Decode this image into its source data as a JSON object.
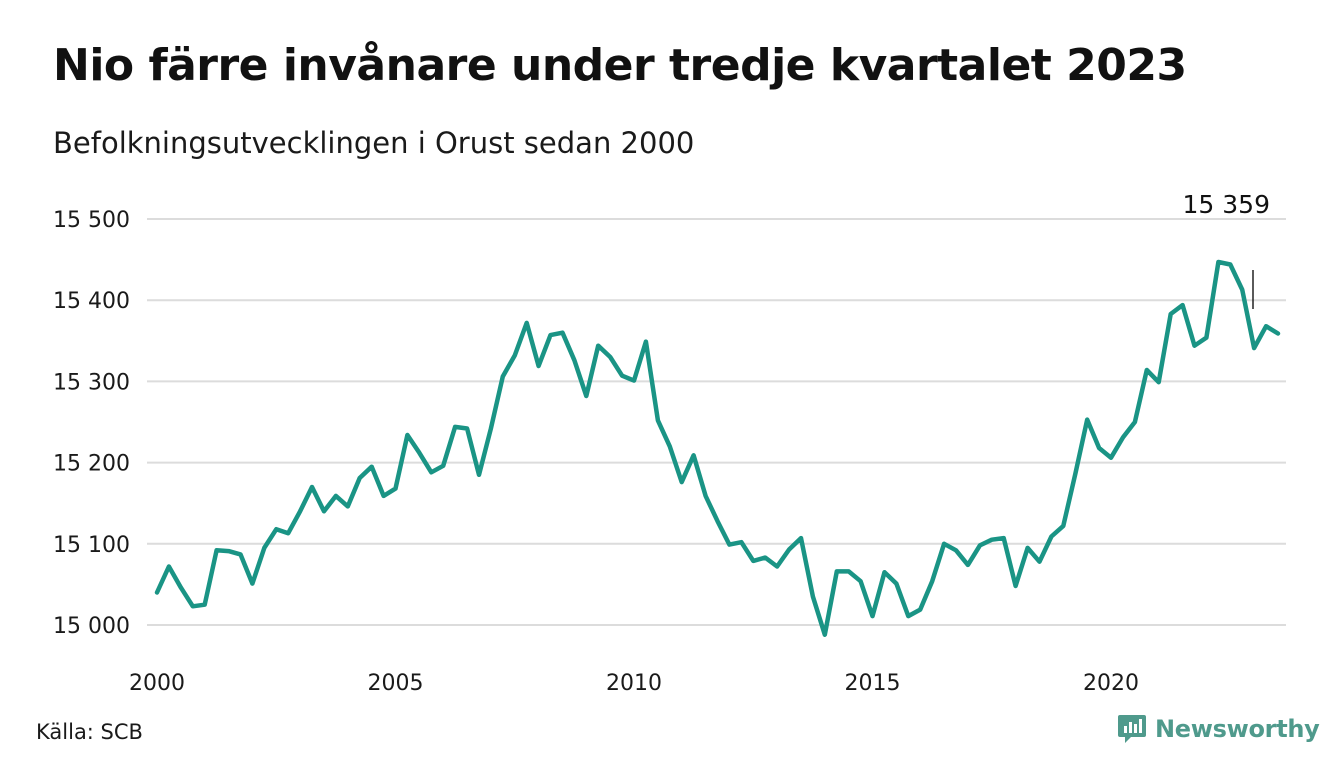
{
  "title": "Nio färre invånare under tredje kvartalet 2023",
  "subtitle": "Befolkningsutvecklingen i Orust sedan 2000",
  "source": "Källa: SCB",
  "brand": "Newsworthy",
  "colors": {
    "line": "#1a9485",
    "grid": "#dcdcdc",
    "brand": "#4f9a8c",
    "annotation": "#222222"
  },
  "chart_data": {
    "type": "line",
    "title": "Nio färre invånare under tredje kvartalet 2023",
    "subtitle": "Befolkningsutvecklingen i Orust sedan 2000",
    "xlabel": "",
    "ylabel": "",
    "xlim": [
      2000,
      2024
    ],
    "ylim": [
      14980,
      15510
    ],
    "y_ticks": [
      15000,
      15100,
      15200,
      15300,
      15400,
      15500
    ],
    "y_tick_labels": [
      "15 000",
      "15 100",
      "15 200",
      "15 300",
      "15 400",
      "15 500"
    ],
    "x_ticks": [
      2000,
      2005,
      2010,
      2015,
      2020
    ],
    "x_tick_labels": [
      "2000",
      "2005",
      "2010",
      "2015",
      "2020"
    ],
    "grid": true,
    "last_value_label": "15 359",
    "x_start": "2000-Q1",
    "x_step": "quarter",
    "values": [
      15040,
      15072,
      15046,
      15023,
      15025,
      15092,
      15091,
      15087,
      15051,
      15095,
      15118,
      15113,
      15140,
      15170,
      15140,
      15159,
      15146,
      15181,
      15195,
      15159,
      15168,
      15234,
      15212,
      15188,
      15196,
      15244,
      15242,
      15185,
      15242,
      15306,
      15332,
      15372,
      15319,
      15357,
      15360,
      15326,
      15282,
      15344,
      15330,
      15307,
      15301,
      15349,
      15252,
      15220,
      15176,
      15209,
      15159,
      15128,
      15099,
      15102,
      15079,
      15083,
      15072,
      15093,
      15107,
      15035,
      14988,
      15066,
      15066,
      15054,
      15011,
      15065,
      15051,
      15011,
      15019,
      15054,
      15100,
      15092,
      15074,
      15098,
      15105,
      15107,
      15048,
      15095,
      15078,
      15109,
      15122,
      15186,
      15253,
      15218,
      15206,
      15231,
      15250,
      15314,
      15299,
      15383,
      15394,
      15344,
      15354,
      15447,
      15444,
      15413,
      15341,
      15368,
      15359
    ]
  }
}
